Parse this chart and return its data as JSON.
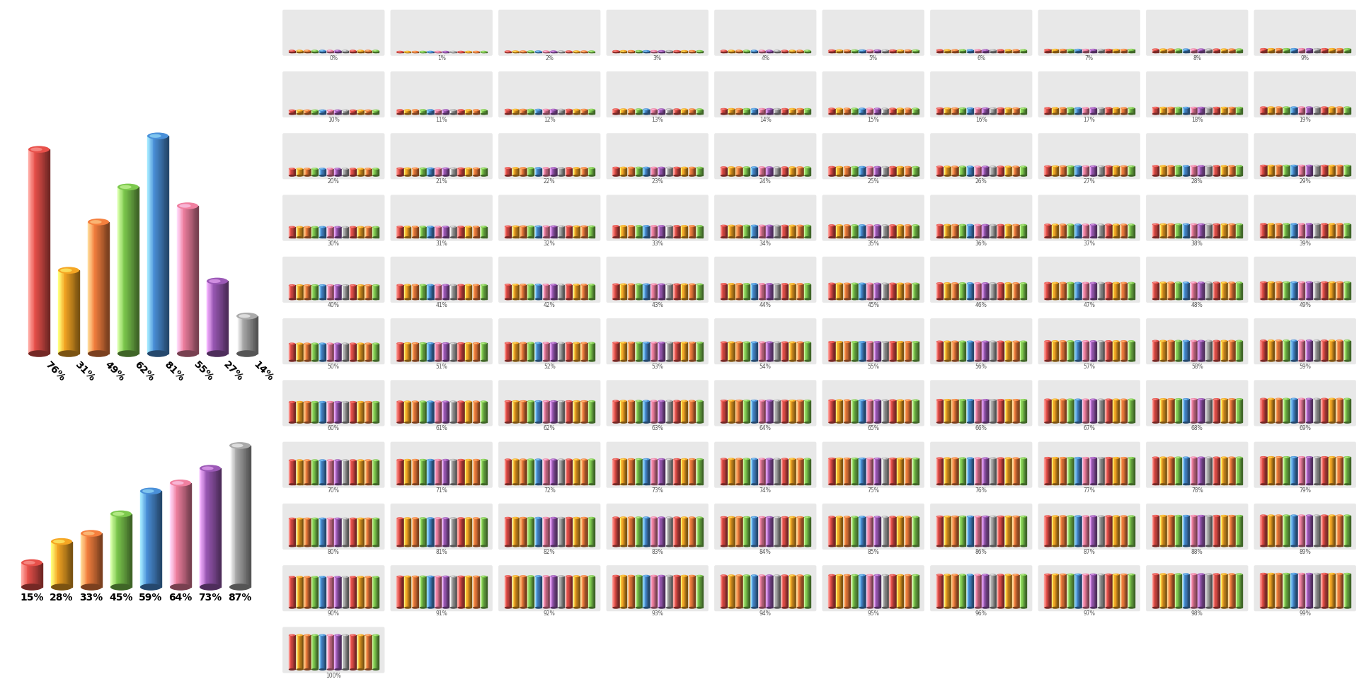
{
  "top_bars": {
    "values": [
      76,
      31,
      49,
      62,
      81,
      55,
      27,
      14
    ],
    "colors": [
      "#E8504A",
      "#F5A623",
      "#F5803E",
      "#7DC94E",
      "#4A90D9",
      "#F080A0",
      "#9B59B6",
      "#AAAAAA"
    ],
    "labels": [
      "76%",
      "31%",
      "49%",
      "62%",
      "81%",
      "55%",
      "27%",
      "14%"
    ]
  },
  "bottom_bars": {
    "values": [
      15,
      28,
      33,
      45,
      59,
      64,
      73,
      87
    ],
    "colors": [
      "#E8504A",
      "#F5A623",
      "#F5803E",
      "#7DC94E",
      "#4A90D9",
      "#F080A0",
      "#9B59B6",
      "#AAAAAA"
    ],
    "labels": [
      "15%",
      "28%",
      "33%",
      "45%",
      "59%",
      "64%",
      "73%",
      "87%"
    ]
  },
  "mini_colors": [
    "#E8504A",
    "#F5A623",
    "#F5803E",
    "#7DC94E",
    "#4A90D9",
    "#F080A0",
    "#9B59B6",
    "#AAAAAA",
    "#E8504A",
    "#F5A623",
    "#F5803E",
    "#7DC94E"
  ],
  "bg_color": "#FFFFFF",
  "label_color": "#555555"
}
